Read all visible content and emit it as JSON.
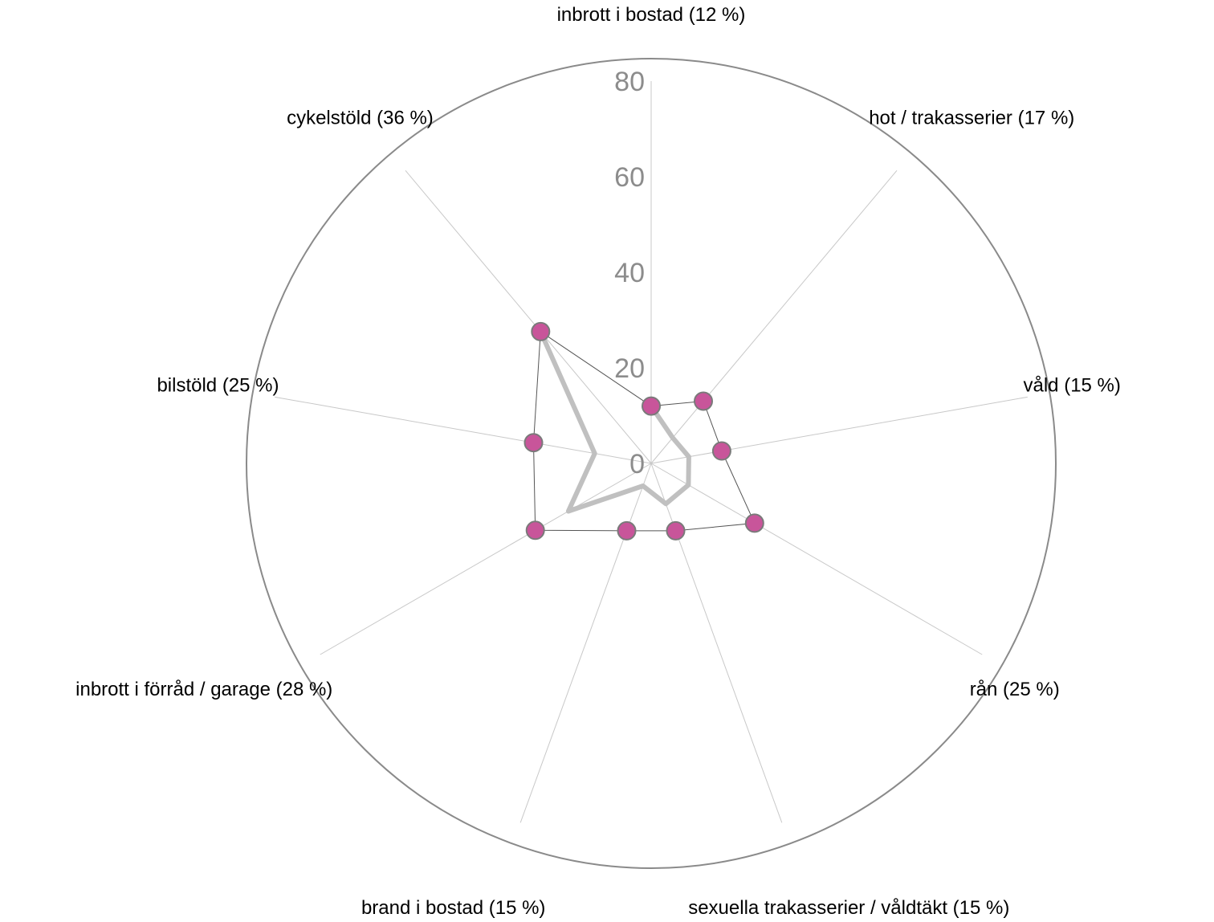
{
  "chart_data": {
    "type": "radar",
    "categories": [
      "inbrott i bostad (12 %)",
      "hot / trakasserier (17 %)",
      "våld (15 %)",
      "rån (25 %)",
      "sexuella trakasserier / våldtäkt (15 %)",
      "brand i bostad (15 %)",
      "inbrott i förråd / garage (28 %)",
      "bilstöld (25 %)",
      "cykelstöld (36 %)"
    ],
    "series": [
      {
        "values": [
          12,
          17,
          15,
          25,
          15,
          15,
          28,
          25,
          36
        ],
        "color": "#c8559a",
        "marker": "circle"
      },
      {
        "values": [
          12,
          7,
          8,
          9,
          9,
          5,
          20,
          12,
          36
        ],
        "color": "#c0c0c0"
      }
    ],
    "radial_ticks": [
      "0",
      "20",
      "40",
      "60",
      "80"
    ],
    "rmax": 80,
    "grid": true,
    "legend": "none"
  }
}
